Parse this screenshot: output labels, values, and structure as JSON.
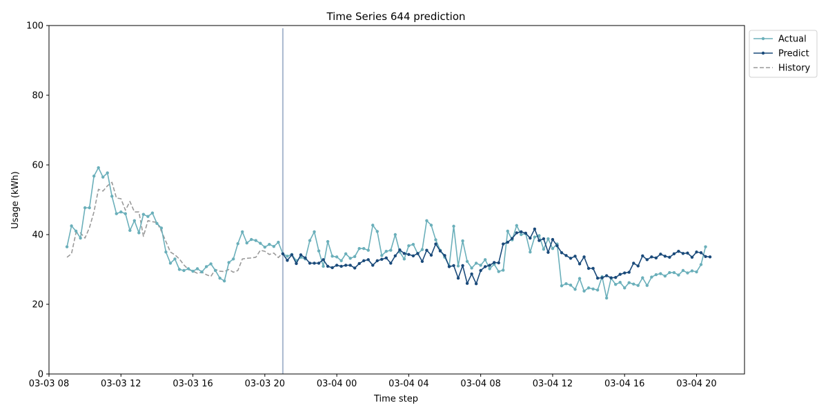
{
  "chart_data": {
    "type": "line",
    "title": "Time Series 644 prediction",
    "xlabel": "Time step",
    "ylabel": "Usage (kWh)",
    "ylim": [
      0,
      100
    ],
    "yticks": [
      0,
      20,
      40,
      60,
      80,
      100
    ],
    "xlim": [
      "2024-03-03 08:00",
      "2024-03-04 22:40"
    ],
    "xticks": [
      {
        "time": "2024-03-03 08:00",
        "label": "03-03 08"
      },
      {
        "time": "2024-03-03 12:00",
        "label": "03-03 12"
      },
      {
        "time": "2024-03-03 16:00",
        "label": "03-03 16"
      },
      {
        "time": "2024-03-03 20:00",
        "label": "03-03 20"
      },
      {
        "time": "2024-03-04 00:00",
        "label": "03-04 00"
      },
      {
        "time": "2024-03-04 04:00",
        "label": "03-04 04"
      },
      {
        "time": "2024-03-04 08:00",
        "label": "03-04 08"
      },
      {
        "time": "2024-03-04 12:00",
        "label": "03-04 12"
      },
      {
        "time": "2024-03-04 16:00",
        "label": "03-04 16"
      },
      {
        "time": "2024-03-04 20:00",
        "label": "03-04 20"
      }
    ],
    "forecast_start": "2024-03-03 21:00",
    "legend_position": "outside-top-right",
    "grid": false,
    "series": [
      {
        "name": "Actual",
        "color": "#6aafba",
        "style": "solid-with-markers",
        "start": "2024-03-03 09:00",
        "step_minutes": 15,
        "values": [
          36.5,
          42.5,
          41,
          39,
          47.7,
          47.7,
          56.8,
          59.2,
          56.5,
          57.7,
          51,
          46,
          46.5,
          46,
          41.2,
          44,
          40.5,
          45.8,
          45.2,
          46.2,
          43.2,
          41.9,
          35,
          31.8,
          33,
          30,
          29.7,
          30.2,
          29.5,
          30.2,
          29.3,
          30.8,
          31.6,
          29.7,
          27.5,
          26.7,
          32,
          33,
          37.4,
          40.8,
          37.6,
          38.6,
          38.3,
          37.5,
          36.4,
          37.2,
          36.6,
          37.8,
          34.5,
          33.8,
          34.3,
          32.5,
          33.5,
          33,
          38.3,
          40.8,
          35.3,
          30.9,
          38,
          33.8,
          33.6,
          32.5,
          34.5,
          33.2,
          33.7,
          36,
          36,
          35.5,
          42.7,
          40.9,
          34,
          35.2,
          35.5,
          40,
          35,
          33,
          36.8,
          37.2,
          34.5,
          35.7,
          44,
          42.7,
          38.5,
          35.5,
          33.5,
          31,
          42.4,
          31,
          38.2,
          32.3,
          30.4,
          31.8,
          31.2,
          32.8,
          30.2,
          31.5,
          29.4,
          29.8,
          41,
          38.5,
          42.6,
          40,
          40.3,
          35,
          39.3,
          39.7,
          35.8,
          38.8,
          36,
          37.3,
          25.3,
          25.9,
          25.5,
          24.3,
          27.4,
          23.8,
          24.7,
          24.4,
          24.1,
          27.9,
          21.8,
          27.5,
          25.7,
          26.3,
          24.7,
          26.2,
          25.8,
          25.4,
          27.6,
          25.4,
          27.8,
          28.5,
          28.8,
          28.1,
          29.1,
          29.1,
          28.4,
          29.7,
          29,
          29.6,
          29.3,
          31.4,
          36.5
        ]
      },
      {
        "name": "Predict",
        "color": "#1a4a7a",
        "style": "solid-with-markers",
        "start": "2024-03-03 21:00",
        "step_minutes": 15,
        "values": [
          34.5,
          32.6,
          34.2,
          31.7,
          34.2,
          33.3,
          31.8,
          31.8,
          31.8,
          32.8,
          30.9,
          30.5,
          31.2,
          30.9,
          31.2,
          31.2,
          30.4,
          31.7,
          32.5,
          32.8,
          31.2,
          32.5,
          32.9,
          33.3,
          31.8,
          33.9,
          35.6,
          34.6,
          34.3,
          33.9,
          34.6,
          32.3,
          35.5,
          34.1,
          37.3,
          35.3,
          34,
          30.8,
          31.1,
          27.5,
          31.1,
          26,
          28.7,
          25.9,
          29.7,
          30.8,
          31.2,
          32,
          31.9,
          37.3,
          37.8,
          38.9,
          40.5,
          40.8,
          40.4,
          39,
          41.6,
          38.3,
          38.8,
          34.9,
          38.6,
          36.8,
          34.8,
          34,
          33.2,
          33.8,
          31.6,
          33.6,
          30.3,
          30.3,
          27.5,
          27.6,
          28.2,
          27.6,
          27.7,
          28.6,
          29,
          29.2,
          31.8,
          31,
          33.9,
          32.8,
          33.6,
          33.3,
          34.4,
          33.8,
          33.5,
          34.5,
          35.2,
          34.6,
          34.7,
          33.5,
          35,
          34.8,
          33.7,
          33.6
        ]
      },
      {
        "name": "History",
        "color": "#999999",
        "style": "dashed",
        "start": "2024-03-03 09:00",
        "step_minutes": 15,
        "values": [
          33.5,
          34.5,
          40.5,
          40.5,
          39,
          42,
          46.5,
          53,
          52.5,
          54,
          55,
          50.5,
          50.3,
          47,
          49.5,
          46.5,
          46.5,
          39.5,
          44,
          43.7,
          43.5,
          41,
          38,
          35,
          34.2,
          33,
          31.3,
          30,
          29.5,
          28.9,
          29.2,
          28.5,
          28,
          30,
          29.5,
          29.4,
          30,
          29.2,
          29.7,
          33,
          33.2,
          33.3,
          33.5,
          35.5,
          35.2,
          34.3,
          34.7,
          33.4,
          34.8
        ]
      }
    ]
  }
}
